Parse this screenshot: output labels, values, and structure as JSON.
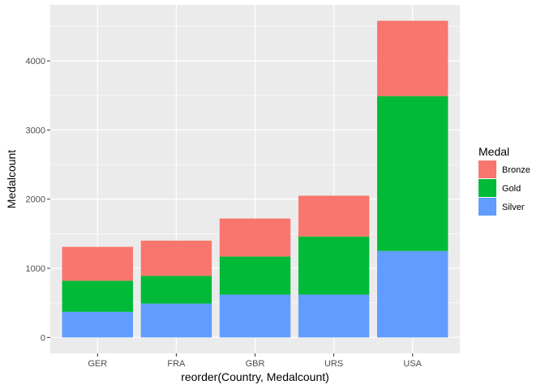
{
  "chart_data": {
    "type": "bar",
    "stacked": true,
    "categories": [
      "GER",
      "FRA",
      "GBR",
      "URS",
      "USA"
    ],
    "series": [
      {
        "name": "Silver",
        "color": "#619CFF",
        "values": [
          370,
          490,
          620,
          620,
          1250
        ]
      },
      {
        "name": "Gold",
        "color": "#00BA38",
        "values": [
          450,
          400,
          550,
          840,
          2240
        ]
      },
      {
        "name": "Bronze",
        "color": "#F8766D",
        "values": [
          490,
          510,
          550,
          590,
          1090
        ]
      }
    ],
    "xlabel": "reorder(Country, Medalcount)",
    "ylabel": "Medalcount",
    "ylim": [
      -230,
      4810
    ],
    "yticks": [
      0,
      1000,
      2000,
      3000,
      4000
    ],
    "grid": true,
    "legend": {
      "title": "Medal",
      "placement": "right",
      "entries": [
        {
          "name": "Bronze",
          "color": "#F8766D"
        },
        {
          "name": "Gold",
          "color": "#00BA38"
        },
        {
          "name": "Silver",
          "color": "#619CFF"
        }
      ]
    }
  }
}
